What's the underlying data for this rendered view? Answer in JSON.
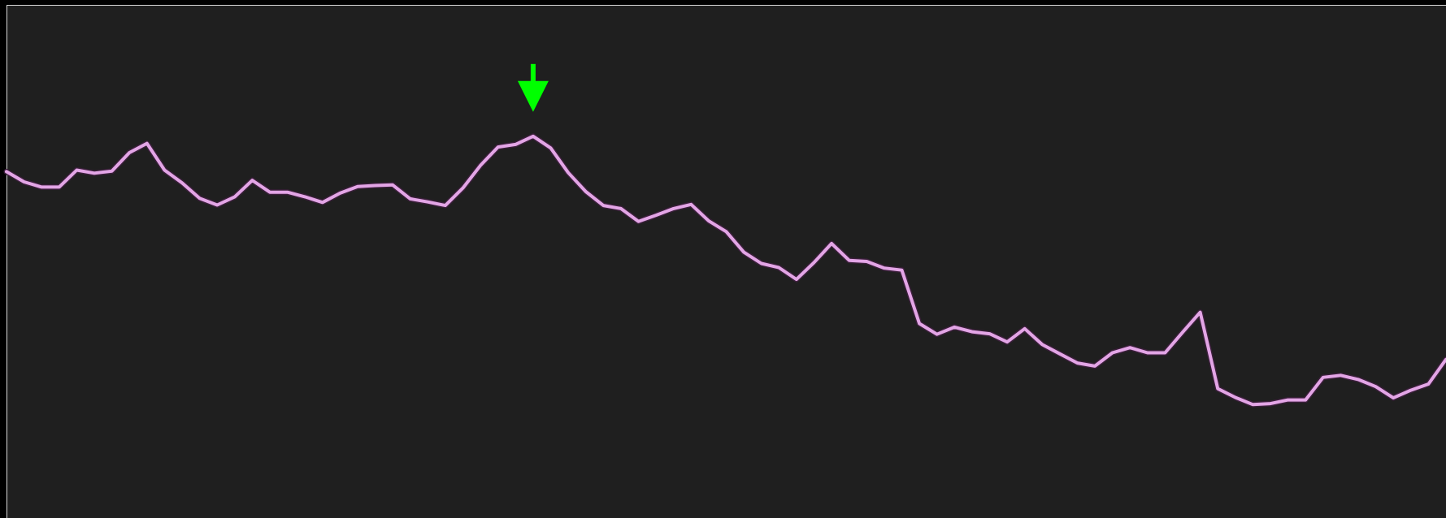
{
  "chart_data": {
    "type": "line",
    "xlabel": "",
    "ylabel": "",
    "xlim": [
      0,
      82
    ],
    "ylim": [
      0,
      100
    ],
    "grid": false,
    "legend": "none",
    "colors": {
      "background": "#1f1f1f",
      "frame": "#d9d9d9",
      "line_outer": "#3a1f3a",
      "line_inner": "#e3a5e6",
      "marker": "#00ff00"
    },
    "marker": {
      "icon": "down-arrow-icon",
      "point_index": 30
    },
    "series": [
      {
        "x": [
          0,
          1,
          2,
          3,
          4,
          5,
          6,
          7,
          8,
          9,
          10,
          11,
          12,
          13,
          14,
          15,
          16,
          17,
          18,
          19,
          20,
          21,
          22,
          23,
          24,
          25,
          26,
          27,
          28,
          29,
          30,
          31,
          32,
          33,
          34,
          35,
          36,
          37,
          38,
          39,
          40,
          41,
          42,
          43,
          44,
          45,
          46,
          47,
          48,
          49,
          50,
          51,
          52,
          53,
          54,
          55,
          56,
          57,
          58,
          59,
          60,
          61,
          62,
          63,
          64,
          65,
          66,
          67,
          68,
          69,
          70,
          71,
          72,
          73,
          74,
          75,
          76,
          77,
          78,
          79,
          80,
          81,
          82
        ],
        "values": [
          67.5,
          65.5,
          64.5,
          64.5,
          67.8,
          67.2,
          67.6,
          71.2,
          73.0,
          67.8,
          65.3,
          62.3,
          61.0,
          62.6,
          65.8,
          63.5,
          63.5,
          62.6,
          61.5,
          63.3,
          64.6,
          64.8,
          64.9,
          62.2,
          61.6,
          60.9,
          64.3,
          68.7,
          72.3,
          72.8,
          74.4,
          72.1,
          67.3,
          63.6,
          60.9,
          60.3,
          57.8,
          59.0,
          60.3,
          61.1,
          57.9,
          55.8,
          51.8,
          49.6,
          48.8,
          46.5,
          49.8,
          53.5,
          50.2,
          50.0,
          48.7,
          48.3,
          37.9,
          35.8,
          37.2,
          36.3,
          35.9,
          34.3,
          36.9,
          33.8,
          32.0,
          30.2,
          29.6,
          32.2,
          33.2,
          32.2,
          32.2,
          36.2,
          40.1,
          25.2,
          23.5,
          22.1,
          22.3,
          23.0,
          23.0,
          27.4,
          27.8,
          27.0,
          25.6,
          23.4,
          24.9,
          26.1,
          30.9
        ]
      }
    ]
  }
}
